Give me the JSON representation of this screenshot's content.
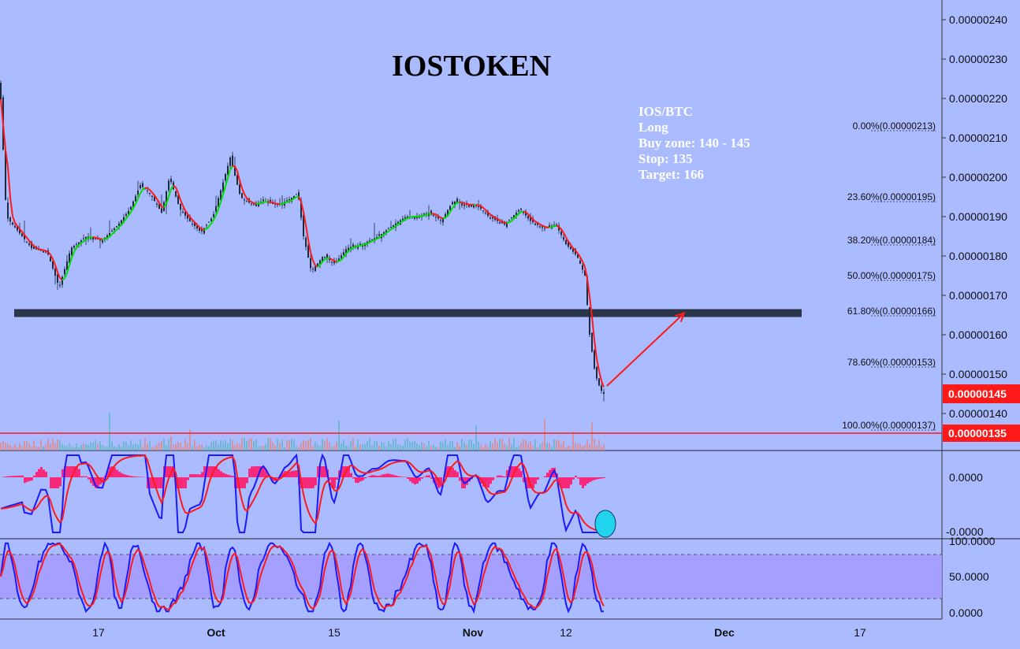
{
  "chart_data": {
    "type": "candlestick",
    "title": "IOSTOKEN",
    "symbol": "IOS/BTC",
    "annotation": [
      "IOS/BTC",
      "Long",
      "Buy zone: 140 - 145",
      "Stop: 135",
      "Target: 166"
    ],
    "price_axis": {
      "ticks": [
        "0.00000240",
        "0.00000230",
        "0.00000220",
        "0.00000210",
        "0.00000200",
        "0.00000190",
        "0.00000180",
        "0.00000170",
        "0.00000160",
        "0.00000150",
        "0.00000140"
      ],
      "range": [
        1.32e-06,
        2.44e-06
      ]
    },
    "current_price": {
      "label": "0.00000145",
      "value": 1.45e-06,
      "color": "#ff1a1a"
    },
    "stop_line": {
      "label": "0.00000135",
      "value": 1.35e-06,
      "color": "#ff1a1a"
    },
    "support_zone": {
      "low": 1.645e-06,
      "high": 1.665e-06,
      "color": "#2b3549"
    },
    "fib_levels": [
      {
        "label": "0.00%(0.00000213)",
        "value": 2.13e-06
      },
      {
        "label": "23.60%(0.00000195)",
        "value": 1.95e-06
      },
      {
        "label": "38.20%(0.00000184)",
        "value": 1.84e-06
      },
      {
        "label": "50.00%(0.00000175)",
        "value": 1.75e-06
      },
      {
        "label": "61.80%(0.00000166)",
        "value": 1.66e-06
      },
      {
        "label": "78.60%(0.00000153)",
        "value": 1.53e-06
      },
      {
        "label": "100.00%(0.00000137)",
        "value": 1.37e-06
      }
    ],
    "x_axis": {
      "ticks": [
        "17",
        "Oct",
        "15",
        "Nov",
        "12",
        "Dec",
        "17"
      ]
    },
    "close_path": [
      [
        0,
        2.24e-06
      ],
      [
        8,
        1.9e-06
      ],
      [
        20,
        1.87e-06
      ],
      [
        40,
        1.82e-06
      ],
      [
        60,
        1.81e-06
      ],
      [
        75,
        1.72e-06
      ],
      [
        90,
        1.82e-06
      ],
      [
        110,
        1.85e-06
      ],
      [
        130,
        1.84e-06
      ],
      [
        150,
        1.88e-06
      ],
      [
        165,
        1.92e-06
      ],
      [
        178,
        1.98e-06
      ],
      [
        190,
        1.96e-06
      ],
      [
        205,
        1.91e-06
      ],
      [
        215,
        2e-06
      ],
      [
        228,
        1.92e-06
      ],
      [
        240,
        1.89e-06
      ],
      [
        255,
        1.86e-06
      ],
      [
        270,
        1.9e-06
      ],
      [
        282,
        1.98e-06
      ],
      [
        292,
        2.05e-06
      ],
      [
        305,
        1.95e-06
      ],
      [
        320,
        1.93e-06
      ],
      [
        335,
        1.94e-06
      ],
      [
        350,
        1.93e-06
      ],
      [
        365,
        1.94e-06
      ],
      [
        378,
        1.96e-06
      ],
      [
        385,
        1.85e-06
      ],
      [
        395,
        1.76e-06
      ],
      [
        410,
        1.8e-06
      ],
      [
        425,
        1.78e-06
      ],
      [
        440,
        1.82e-06
      ],
      [
        460,
        1.83e-06
      ],
      [
        480,
        1.85e-06
      ],
      [
        500,
        1.88e-06
      ],
      [
        515,
        1.9e-06
      ],
      [
        530,
        1.9e-06
      ],
      [
        545,
        1.91e-06
      ],
      [
        560,
        1.89e-06
      ],
      [
        575,
        1.94e-06
      ],
      [
        590,
        1.93e-06
      ],
      [
        605,
        1.93e-06
      ],
      [
        620,
        1.9e-06
      ],
      [
        640,
        1.88e-06
      ],
      [
        660,
        1.92e-06
      ],
      [
        672,
        1.89e-06
      ],
      [
        690,
        1.87e-06
      ],
      [
        705,
        1.88e-06
      ],
      [
        718,
        1.83e-06
      ],
      [
        732,
        1.8e-06
      ],
      [
        742,
        1.75e-06
      ],
      [
        748,
        1.6e-06
      ],
      [
        755,
        1.5e-06
      ],
      [
        762,
        1.46e-06
      ],
      [
        766,
        1.45e-06
      ]
    ],
    "target_arrow": {
      "from_x_index": 770,
      "from_value": 1.47e-06,
      "to_x_index": 868,
      "to_value": 1.655e-06
    },
    "macd_panel": {
      "ticks": [
        "0.0000",
        "-0.0000"
      ],
      "series": [
        "MACD",
        "Signal",
        "Histogram"
      ]
    },
    "stoch_panel": {
      "ticks": [
        "100.0000",
        "50.0000",
        "0.0000"
      ],
      "upper": 80,
      "lower": 20
    }
  },
  "colors": {
    "background": "#aabbff",
    "candle": "#1d2b3d",
    "ma_up": "#00e000",
    "ma_down": "#ff1a1a",
    "macd_line": "#1a1aff",
    "signal_line": "#ff1a1a",
    "histogram": "#ff1a6b",
    "stoch_band": "#a59bff",
    "volume_up": "#5fb8c4",
    "volume_down": "#e08a8a"
  }
}
